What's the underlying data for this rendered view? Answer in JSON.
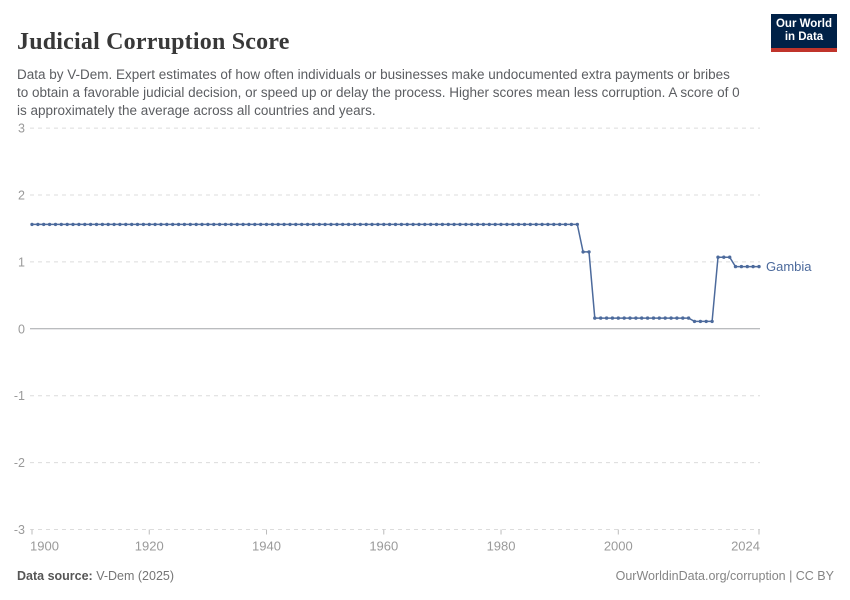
{
  "header": {
    "title": "Judicial Corruption Score",
    "subtitle": "Data by V-Dem. Expert estimates of how often individuals or businesses make undocumented extra payments or bribes to obtain a favorable judicial decision, or speed up or delay the process. Higher scores mean less corruption. A score of 0 is approximately the average across all countries and years.",
    "logo": {
      "line1": "Our World",
      "line2": "in Data",
      "bg_color": "#002147",
      "bar_color": "#c0342b"
    }
  },
  "chart_data": {
    "type": "line",
    "title": "Judicial Corruption Score",
    "xlabel": "",
    "ylabel": "",
    "xlim": [
      1900,
      2024
    ],
    "ylim": [
      -3,
      3
    ],
    "x_ticks": [
      1900,
      1920,
      1940,
      1960,
      1980,
      2000,
      2024
    ],
    "y_ticks": [
      3,
      2,
      1,
      0,
      -1,
      -2,
      -3
    ],
    "grid": "horizontal-dashed",
    "legend_position": "end-of-line-label",
    "colors": {
      "line": "#4c6a9c",
      "gridline": "#dcdcdc",
      "zero_line": "#a3a6a9",
      "axis_text": "#9a9a9a",
      "tick_mark": "#bbbbbb"
    },
    "series": [
      {
        "name": "Gambia",
        "color": "#4c6a9c",
        "marker": "circle-every-year",
        "segments": [
          {
            "from_year": 1900,
            "to_year": 1993,
            "value": 1.56
          },
          {
            "from_year": 1994,
            "to_year": 1995,
            "value": 1.15
          },
          {
            "from_year": 1996,
            "to_year": 2012,
            "value": 0.16
          },
          {
            "from_year": 2013,
            "to_year": 2016,
            "value": 0.11
          },
          {
            "from_year": 2017,
            "to_year": 2019,
            "value": 1.07
          },
          {
            "from_year": 2020,
            "to_year": 2024,
            "value": 0.93
          }
        ]
      }
    ]
  },
  "footer": {
    "source_label": "Data source:",
    "source_value": " V-Dem (2025)",
    "right_text": "OurWorldinData.org/corruption | CC BY"
  }
}
